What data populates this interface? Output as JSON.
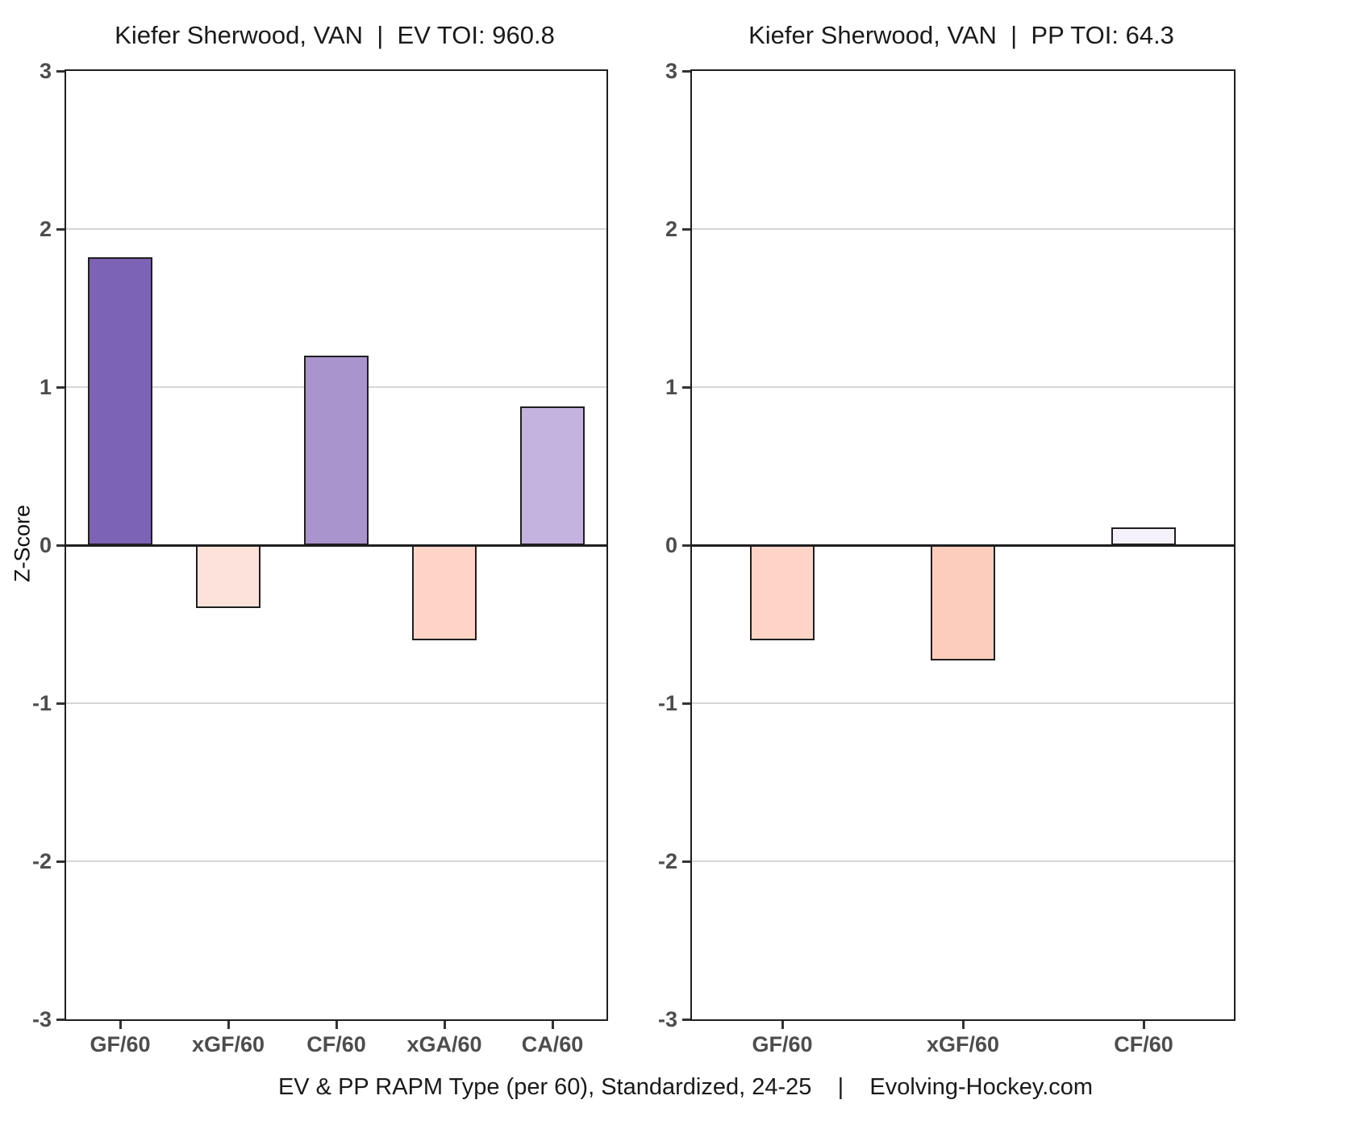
{
  "ylabel": "Z-Score",
  "footer": "EV & PP RAPM Type (per 60), Standardized, 24-25    |    Evolving-Hockey.com",
  "colors": {
    "positive_strong": "#7D63B5",
    "positive_mid": "#A994CE",
    "positive_light": "#C4B3DE",
    "positive_faint": "#F4F1FA",
    "negative_faint": "#FCE2DA",
    "negative_light": "#FDD4C7",
    "negative_mid": "#FCCDBD",
    "gridline": "#d6d6d6",
    "axis": "#1f1f1f",
    "tick_text": "#4d4d4d"
  },
  "chart_data": [
    {
      "type": "bar",
      "key": "ev",
      "title": "Kiefer Sherwood, VAN  |  EV TOI: 960.8",
      "ylabel": "Z-Score",
      "ylim": [
        -3,
        3
      ],
      "yticks": [
        3,
        2,
        1,
        0,
        -1,
        -2,
        -3
      ],
      "grid": true,
      "categories": [
        "GF/60",
        "xGF/60",
        "CF/60",
        "xGA/60",
        "CA/60"
      ],
      "values": [
        1.82,
        -0.4,
        1.2,
        -0.6,
        0.88
      ],
      "bar_colors": [
        "#7D63B5",
        "#FCE2DA",
        "#A994CE",
        "#FDD4C7",
        "#C4B3DE"
      ]
    },
    {
      "type": "bar",
      "key": "pp",
      "title": "Kiefer Sherwood, VAN  |  PP TOI: 64.3",
      "ylabel": "Z-Score",
      "ylim": [
        -3,
        3
      ],
      "yticks": [
        3,
        2,
        1,
        0,
        -1,
        -2,
        -3
      ],
      "grid": true,
      "categories": [
        "GF/60",
        "xGF/60",
        "CF/60"
      ],
      "values": [
        -0.6,
        -0.73,
        0.11
      ],
      "bar_colors": [
        "#FDD4C7",
        "#FCCDBD",
        "#F4F1FA"
      ]
    }
  ]
}
